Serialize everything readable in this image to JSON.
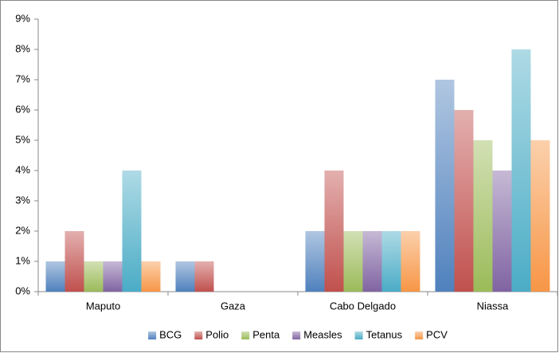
{
  "chart_data": {
    "type": "bar",
    "categories": [
      "Maputo",
      "Gaza",
      "Cabo Delgado",
      "Niassa"
    ],
    "series": [
      {
        "name": "BCG",
        "color": "#4f81bd",
        "values": [
          1,
          1,
          2,
          7
        ]
      },
      {
        "name": "Polio",
        "color": "#c0504d",
        "values": [
          2,
          1,
          4,
          6
        ]
      },
      {
        "name": "Penta",
        "color": "#9bbb59",
        "values": [
          1,
          0,
          2,
          5
        ]
      },
      {
        "name": "Measles",
        "color": "#8064a2",
        "values": [
          1,
          0,
          2,
          4
        ]
      },
      {
        "name": "Tetanus",
        "color": "#4bacc6",
        "values": [
          4,
          0,
          2,
          8
        ]
      },
      {
        "name": "PCV",
        "color": "#f79646",
        "values": [
          1,
          0,
          2,
          5
        ]
      }
    ],
    "ylim": [
      0,
      9
    ],
    "yticks": [
      {
        "value": 0,
        "label": "0%"
      },
      {
        "value": 1,
        "label": "1%"
      },
      {
        "value": 2,
        "label": "2%"
      },
      {
        "value": 3,
        "label": "3%"
      },
      {
        "value": 4,
        "label": "4%"
      },
      {
        "value": 5,
        "label": "5%"
      },
      {
        "value": 6,
        "label": "6%"
      },
      {
        "value": 7,
        "label": "7%"
      },
      {
        "value": 8,
        "label": "8%"
      },
      {
        "value": 9,
        "label": "9%"
      }
    ],
    "grid": false,
    "legend": "bottom"
  }
}
